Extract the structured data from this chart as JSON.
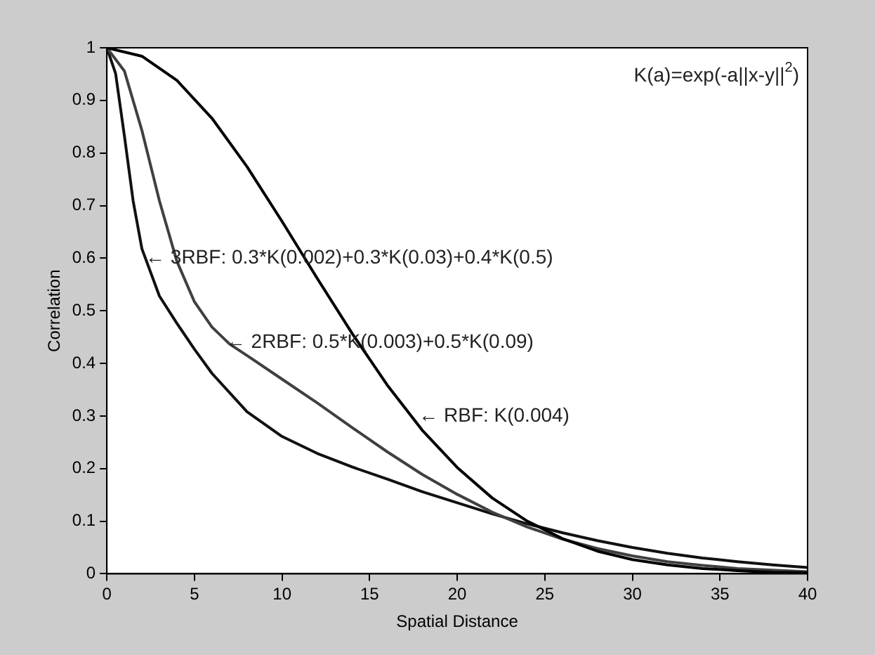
{
  "chart_data": {
    "type": "line",
    "xlabel": "Spatial Distance",
    "ylabel": "Correlation",
    "xlim": [
      0,
      40
    ],
    "xticks": [
      0,
      5,
      10,
      15,
      20,
      25,
      30,
      35,
      40
    ],
    "ylim": [
      0,
      1
    ],
    "yticks": [
      0,
      0.1,
      0.2,
      0.3,
      0.4,
      0.5,
      0.6,
      0.7,
      0.8,
      0.9,
      1
    ],
    "grid": false,
    "legend": false,
    "marker": "none",
    "line_style": "solid",
    "series": [
      {
        "color": "#000000",
        "x": [
          0,
          2,
          4,
          6,
          8,
          10,
          12,
          14,
          16,
          18,
          20,
          22,
          24,
          26,
          28,
          30,
          32,
          34,
          36,
          38,
          40
        ],
        "values": [
          1,
          0.984,
          0.938,
          0.866,
          0.774,
          0.67,
          0.562,
          0.457,
          0.359,
          0.273,
          0.202,
          0.144,
          0.1,
          0.067,
          0.043,
          0.027,
          0.017,
          0.01,
          0.006,
          0.003,
          0.002
        ]
      },
      {
        "color": "#404040",
        "x": [
          0,
          1,
          2,
          3,
          4,
          5,
          6,
          7,
          8,
          10,
          12,
          14,
          16,
          18,
          20,
          22,
          24,
          26,
          28,
          30,
          32,
          34,
          36,
          38,
          40
        ],
        "values": [
          1,
          0.956,
          0.843,
          0.709,
          0.594,
          0.517,
          0.469,
          0.437,
          0.415,
          0.37,
          0.325,
          0.278,
          0.232,
          0.189,
          0.151,
          0.117,
          0.089,
          0.066,
          0.048,
          0.034,
          0.023,
          0.016,
          0.01,
          0.007,
          0.004
        ]
      },
      {
        "color": "#111111",
        "x": [
          0,
          0.5,
          1,
          1.5,
          2,
          3,
          4,
          5,
          6,
          8,
          10,
          12,
          14,
          16,
          18,
          20,
          22,
          24,
          26,
          28,
          30,
          32,
          34,
          36,
          38,
          40
        ],
        "values": [
          1,
          0.951,
          0.833,
          0.709,
          0.618,
          0.528,
          0.476,
          0.427,
          0.381,
          0.308,
          0.261,
          0.229,
          0.203,
          0.18,
          0.156,
          0.135,
          0.114,
          0.095,
          0.078,
          0.063,
          0.05,
          0.039,
          0.03,
          0.023,
          0.017,
          0.012
        ]
      }
    ],
    "annotations": [
      "K(a)=exp(-a||x-y||$^{2}$)",
      {
        "text": "← 3RBF: 0.3*K(0.002)+0.3*K(0.03)+0.4*K(0.5)",
        "x": 2.2,
        "y": 0.6
      },
      {
        "text": "← 2RBF: 0.5*K(0.003)+0.5*K(0.09)",
        "x": 6.8,
        "y": 0.44
      },
      {
        "text": "← RBF: K(0.004)",
        "x": 17.8,
        "y": 0.3
      }
    ]
  }
}
